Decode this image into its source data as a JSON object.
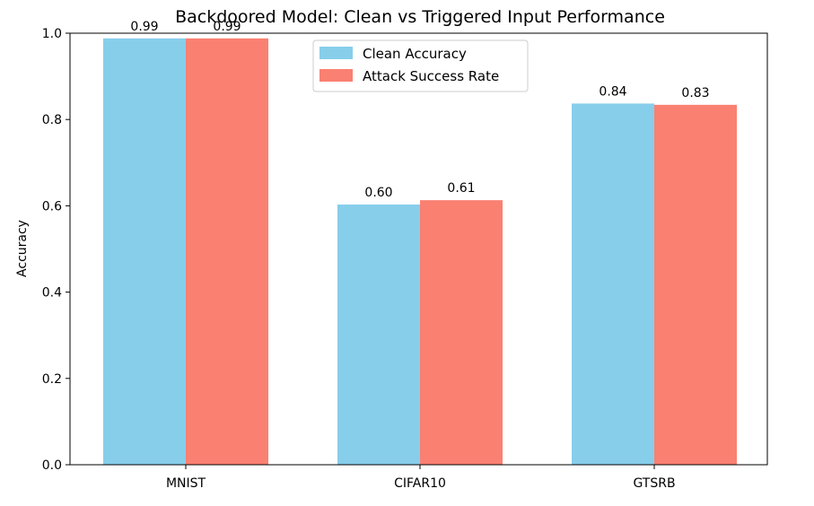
{
  "chart_data": {
    "type": "bar",
    "title": "Backdoored Model: Clean vs Triggered Input Performance",
    "xlabel": "",
    "ylabel": "Accuracy",
    "categories": [
      "MNIST",
      "CIFAR10",
      "GTSRB"
    ],
    "series": [
      {
        "name": "Clean Accuracy",
        "color": "#87ceeb",
        "values": [
          0.988,
          0.603,
          0.837
        ],
        "labels": [
          "0.99",
          "0.60",
          "0.84"
        ]
      },
      {
        "name": "Attack Success Rate",
        "color": "#fa8072",
        "values": [
          0.988,
          0.613,
          0.834
        ],
        "labels": [
          "0.99",
          "0.61",
          "0.83"
        ]
      }
    ],
    "ylim": [
      0,
      1.0
    ],
    "yticks": [
      "0.0",
      "0.2",
      "0.4",
      "0.6",
      "0.8",
      "1.0"
    ],
    "grid": false,
    "legend_position": "top-center"
  }
}
